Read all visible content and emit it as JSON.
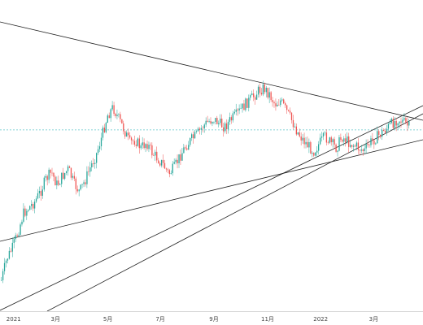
{
  "chart_data": {
    "type": "candlestick",
    "title": "",
    "xlabel": "",
    "ylabel": "",
    "x_ticks": [
      {
        "label": "2021",
        "t": 0.5
      },
      {
        "label": "3月",
        "t": 9.0
      },
      {
        "label": "5月",
        "t": 17.5
      },
      {
        "label": "7月",
        "t": 26.0
      },
      {
        "label": "9月",
        "t": 34.7
      },
      {
        "label": "11月",
        "t": 43.4
      },
      {
        "label": "2022",
        "t": 52.0
      },
      {
        "label": "3月",
        "t": 60.6
      }
    ],
    "x_range": [
      0,
      68.6
    ],
    "y_range": [
      -10,
      390
    ],
    "y_invert": true,
    "reference_price": 157,
    "colors": {
      "up": "#26a69a",
      "down": "#ef5350",
      "trendline": "#222222",
      "reference": "#5ec4c8",
      "axis_text": "#444444"
    },
    "series_close": [
      345,
      318,
      305,
      285,
      262,
      255,
      248,
      236,
      220,
      212,
      228,
      216,
      208,
      226,
      236,
      222,
      205,
      190,
      168,
      142,
      132,
      146,
      160,
      176,
      172,
      182,
      175,
      188,
      195,
      203,
      214,
      206,
      192,
      180,
      172,
      166,
      156,
      150,
      146,
      152,
      156,
      148,
      142,
      134,
      126,
      120,
      112,
      108,
      116,
      128,
      124,
      136,
      148,
      162,
      172,
      180,
      186,
      176,
      168,
      176,
      182,
      168,
      174,
      178,
      182,
      186,
      176,
      170,
      164,
      158,
      152,
      146,
      150,
      156
    ],
    "trendlines": [
      {
        "x1": 0,
        "y1": 27,
        "x2": 520,
        "y2": 148
      },
      {
        "x1": 0,
        "y1": 297,
        "x2": 520,
        "y2": 172
      },
      {
        "x1": 0,
        "y1": 382,
        "x2": 520,
        "y2": 130
      },
      {
        "x1": 58,
        "y1": 383,
        "x2": 520,
        "y2": 140
      }
    ]
  }
}
